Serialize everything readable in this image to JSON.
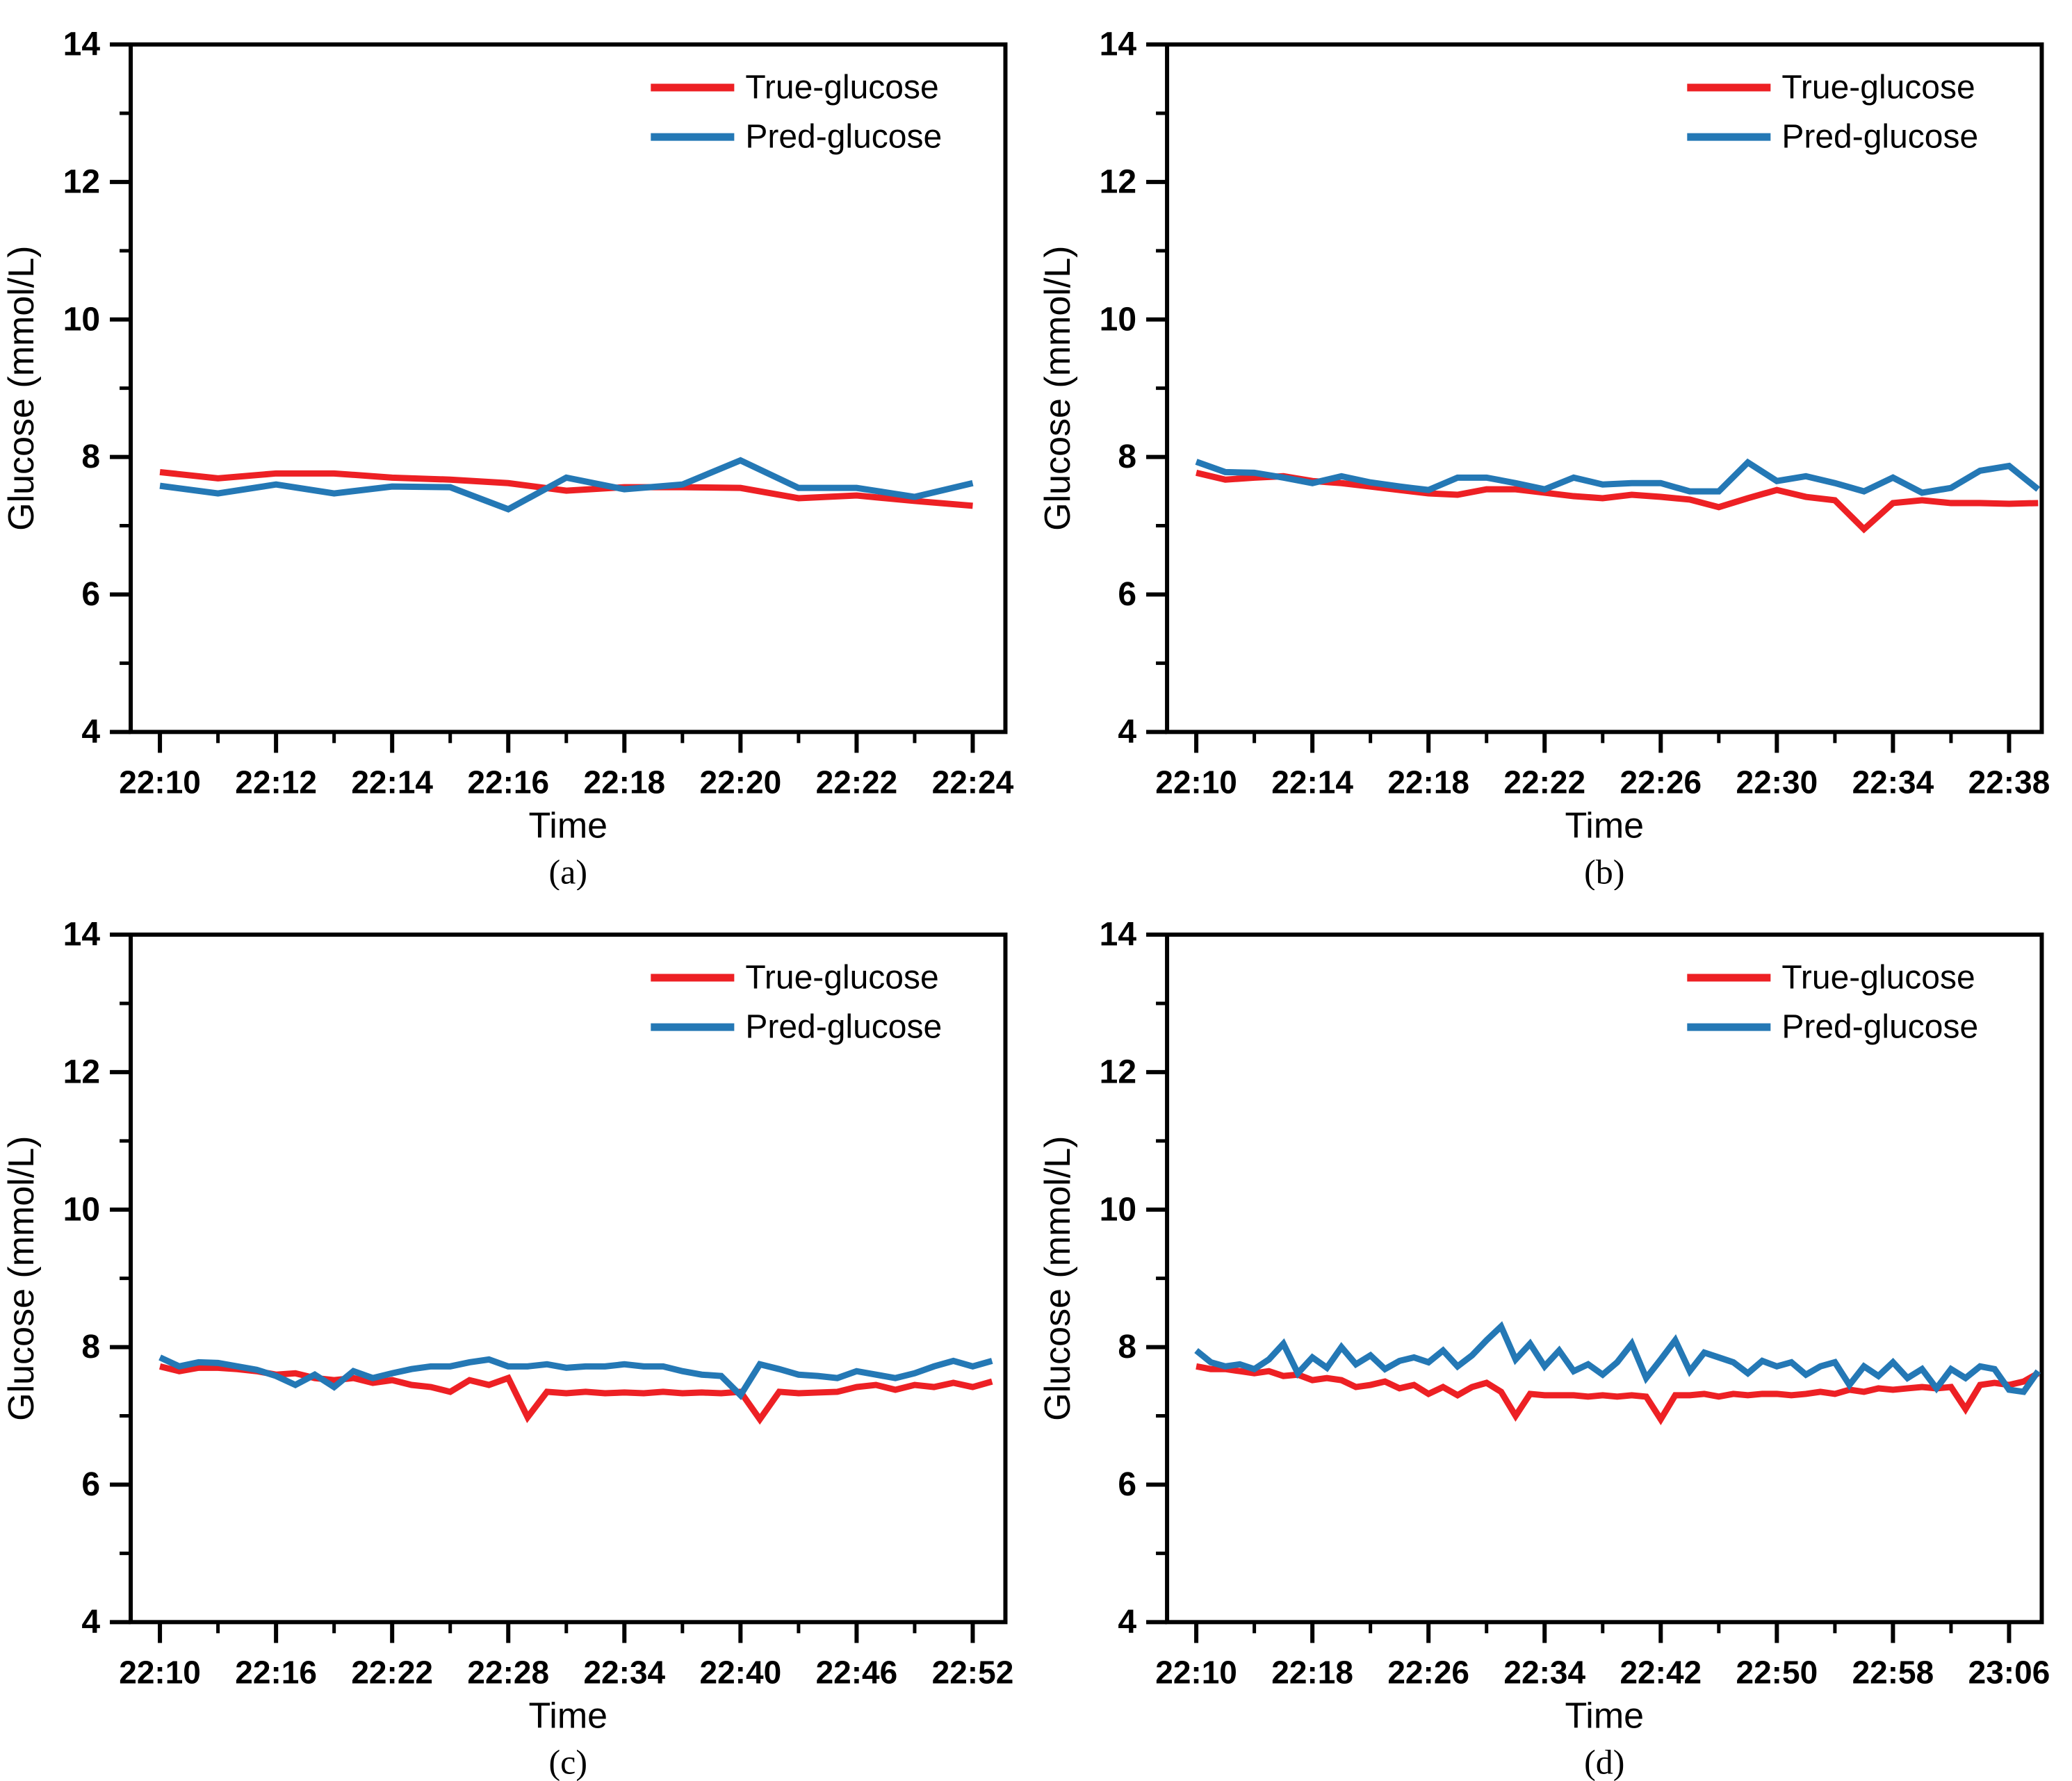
{
  "figure": {
    "background": "#ffffff",
    "ylabel": "Glucose (mmol/L)",
    "xlabel": "Time",
    "legend": {
      "position": "top-right",
      "items": [
        {
          "label": "True-glucose",
          "color": "#ed2024"
        },
        {
          "label": "Pred-glucose",
          "color": "#2478b5"
        }
      ]
    }
  },
  "chart_data": [
    {
      "type": "line",
      "panel_label": "(a)",
      "xlabel": "Time",
      "ylabel": "Glucose (mmol/L)",
      "ylim": [
        4,
        14
      ],
      "y_major_ticks": [
        4,
        6,
        8,
        10,
        12,
        14
      ],
      "y_minor_ticks": [
        5,
        7,
        9,
        11,
        13
      ],
      "x_tick_labels": [
        "22:10",
        "22:12",
        "22:14",
        "22:16",
        "22:18",
        "22:20",
        "22:22",
        "22:24"
      ],
      "x_tick_minutes": [
        0,
        2,
        4,
        6,
        8,
        10,
        12,
        14
      ],
      "x_minor_minutes": [
        1,
        3,
        5,
        7,
        9,
        11,
        13,
        15
      ],
      "start_time": "22:10",
      "interval_minutes": 1,
      "grid": false,
      "legend_position": "top-right",
      "series": [
        {
          "name": "True-glucose",
          "color": "#ed2024",
          "values": [
            7.78,
            7.69,
            7.76,
            7.76,
            7.7,
            7.67,
            7.62,
            7.51,
            7.56,
            7.56,
            7.55,
            7.4,
            7.44,
            7.36,
            7.29
          ]
        },
        {
          "name": "Pred-glucose",
          "color": "#2478b5",
          "values": [
            7.58,
            7.47,
            7.6,
            7.47,
            7.57,
            7.56,
            7.24,
            7.7,
            7.53,
            7.6,
            7.95,
            7.55,
            7.55,
            7.42,
            7.62
          ]
        }
      ]
    },
    {
      "type": "line",
      "panel_label": "(b)",
      "xlabel": "Time",
      "ylabel": "Glucose (mmol/L)",
      "ylim": [
        4,
        14
      ],
      "y_major_ticks": [
        4,
        6,
        8,
        10,
        12,
        14
      ],
      "y_minor_ticks": [
        5,
        7,
        9,
        11,
        13
      ],
      "x_tick_labels": [
        "22:10",
        "22:14",
        "22:18",
        "22:22",
        "22:26",
        "22:30",
        "22:34",
        "22:38"
      ],
      "x_tick_minutes": [
        0,
        4,
        8,
        12,
        16,
        20,
        24,
        28
      ],
      "x_minor_minutes": [
        2,
        6,
        10,
        14,
        18,
        22,
        26,
        30
      ],
      "start_time": "22:10",
      "interval_minutes": 1,
      "grid": false,
      "legend_position": "top-right",
      "series": [
        {
          "name": "True-glucose",
          "color": "#ed2024",
          "values": [
            7.77,
            7.67,
            7.7,
            7.72,
            7.65,
            7.62,
            7.57,
            7.52,
            7.47,
            7.45,
            7.53,
            7.53,
            7.48,
            7.43,
            7.4,
            7.45,
            7.42,
            7.38,
            7.27,
            7.4,
            7.52,
            7.42,
            7.37,
            6.95,
            7.33,
            7.37,
            7.33,
            7.33,
            7.32,
            7.33
          ]
        },
        {
          "name": "Pred-glucose",
          "color": "#2478b5",
          "values": [
            7.93,
            7.78,
            7.77,
            7.7,
            7.62,
            7.72,
            7.63,
            7.57,
            7.52,
            7.7,
            7.7,
            7.62,
            7.53,
            7.7,
            7.6,
            7.62,
            7.62,
            7.5,
            7.5,
            7.92,
            7.65,
            7.72,
            7.62,
            7.5,
            7.7,
            7.48,
            7.55,
            7.8,
            7.87,
            7.53
          ]
        }
      ]
    },
    {
      "type": "line",
      "panel_label": "(c)",
      "xlabel": "Time",
      "ylabel": "Glucose (mmol/L)",
      "ylim": [
        4,
        14
      ],
      "y_major_ticks": [
        4,
        6,
        8,
        10,
        12,
        14
      ],
      "y_minor_ticks": [
        5,
        7,
        9,
        11,
        13
      ],
      "x_tick_labels": [
        "22:10",
        "22:16",
        "22:22",
        "22:28",
        "22:34",
        "22:40",
        "22:46",
        "22:52"
      ],
      "x_tick_minutes": [
        0,
        6,
        12,
        18,
        24,
        30,
        36,
        42
      ],
      "x_minor_minutes": [
        3,
        9,
        15,
        21,
        27,
        33,
        39
      ],
      "start_time": "22:10",
      "interval_minutes": 1,
      "grid": false,
      "legend_position": "top-right",
      "series": [
        {
          "name": "True-glucose",
          "color": "#ed2024",
          "values": [
            7.72,
            7.65,
            7.7,
            7.7,
            7.68,
            7.65,
            7.6,
            7.62,
            7.55,
            7.52,
            7.55,
            7.48,
            7.52,
            7.45,
            7.42,
            7.35,
            7.52,
            7.45,
            7.55,
            6.98,
            7.35,
            7.33,
            7.35,
            7.33,
            7.34,
            7.33,
            7.35,
            7.33,
            7.34,
            7.33,
            7.35,
            6.95,
            7.35,
            7.33,
            7.34,
            7.35,
            7.42,
            7.45,
            7.38,
            7.45,
            7.42,
            7.48,
            7.42,
            7.5
          ]
        },
        {
          "name": "Pred-glucose",
          "color": "#2478b5",
          "values": [
            7.85,
            7.72,
            7.78,
            7.77,
            7.72,
            7.67,
            7.58,
            7.45,
            7.6,
            7.42,
            7.65,
            7.55,
            7.62,
            7.68,
            7.72,
            7.72,
            7.78,
            7.82,
            7.72,
            7.72,
            7.75,
            7.7,
            7.72,
            7.72,
            7.75,
            7.72,
            7.72,
            7.65,
            7.6,
            7.58,
            7.3,
            7.75,
            7.68,
            7.6,
            7.58,
            7.55,
            7.65,
            7.6,
            7.55,
            7.62,
            7.72,
            7.8,
            7.72,
            7.8
          ]
        }
      ]
    },
    {
      "type": "line",
      "panel_label": "(d)",
      "xlabel": "Time",
      "ylabel": "Glucose (mmol/L)",
      "ylim": [
        4,
        14
      ],
      "y_major_ticks": [
        4,
        6,
        8,
        10,
        12,
        14
      ],
      "y_minor_ticks": [
        5,
        7,
        9,
        11,
        13
      ],
      "x_tick_labels": [
        "22:10",
        "22:18",
        "22:26",
        "22:34",
        "22:42",
        "22:50",
        "22:58",
        "23:06"
      ],
      "x_tick_minutes": [
        0,
        8,
        16,
        24,
        32,
        40,
        48,
        56
      ],
      "x_minor_minutes": [
        4,
        12,
        20,
        28,
        36,
        44,
        52
      ],
      "start_time": "22:10",
      "interval_minutes": 1,
      "grid": false,
      "legend_position": "top-right",
      "series": [
        {
          "name": "True-glucose",
          "color": "#ed2024",
          "values": [
            7.72,
            7.68,
            7.68,
            7.65,
            7.62,
            7.65,
            7.58,
            7.6,
            7.52,
            7.55,
            7.52,
            7.42,
            7.45,
            7.5,
            7.4,
            7.45,
            7.32,
            7.42,
            7.3,
            7.42,
            7.48,
            7.35,
            7.0,
            7.32,
            7.3,
            7.3,
            7.3,
            7.28,
            7.3,
            7.28,
            7.3,
            7.28,
            6.95,
            7.3,
            7.3,
            7.32,
            7.28,
            7.32,
            7.3,
            7.32,
            7.32,
            7.3,
            7.32,
            7.35,
            7.32,
            7.38,
            7.35,
            7.4,
            7.38,
            7.4,
            7.42,
            7.4,
            7.42,
            7.1,
            7.45,
            7.48,
            7.45,
            7.5,
            7.62
          ]
        },
        {
          "name": "Pred-glucose",
          "color": "#2478b5",
          "values": [
            7.95,
            7.78,
            7.72,
            7.75,
            7.68,
            7.82,
            8.05,
            7.62,
            7.85,
            7.7,
            8.0,
            7.75,
            7.88,
            7.68,
            7.8,
            7.85,
            7.78,
            7.95,
            7.72,
            7.88,
            8.1,
            8.3,
            7.82,
            8.05,
            7.72,
            7.95,
            7.65,
            7.75,
            7.6,
            7.78,
            8.05,
            7.55,
            7.82,
            8.1,
            7.65,
            7.92,
            7.85,
            7.78,
            7.62,
            7.8,
            7.72,
            7.78,
            7.6,
            7.72,
            7.78,
            7.45,
            7.72,
            7.58,
            7.78,
            7.55,
            7.68,
            7.4,
            7.68,
            7.55,
            7.72,
            7.68,
            7.38,
            7.35,
            7.65
          ]
        }
      ]
    }
  ]
}
